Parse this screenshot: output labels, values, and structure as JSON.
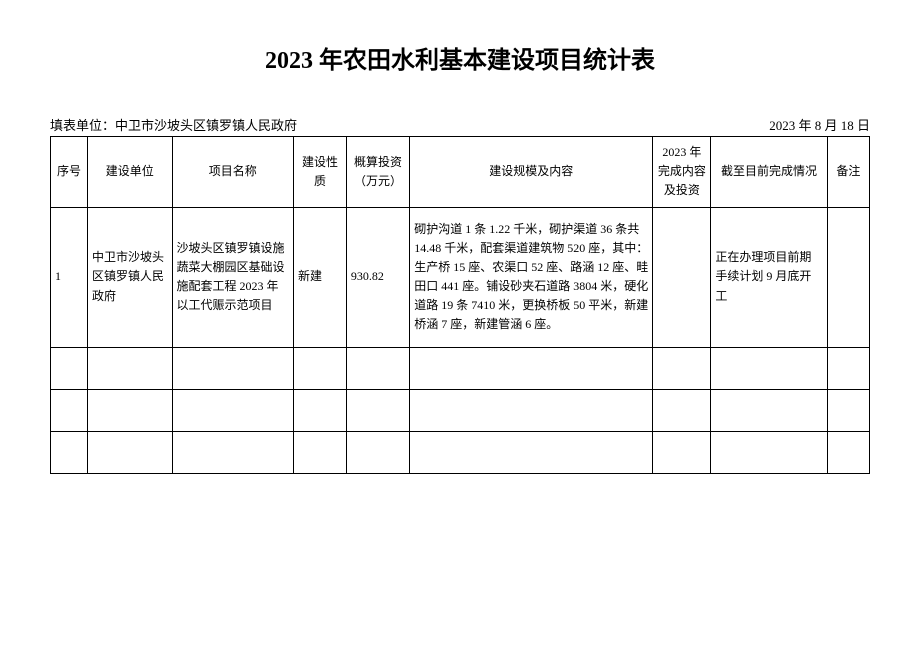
{
  "title": "2023 年农田水利基本建设项目统计表",
  "meta": {
    "fillUnit": "填表单位：中卫市沙坡头区镇罗镇人民政府",
    "date": "2023 年 8 月 18 日"
  },
  "headers": {
    "seq": "序号",
    "unit": "建设单位",
    "name": "项目名称",
    "nature": "建设性质",
    "invest": "概算投资（万元）",
    "content": "建设规模及内容",
    "year2023": "2023 年完成内容及投资",
    "status": "截至目前完成情况",
    "remark": "备注"
  },
  "rows": [
    {
      "seq": "1",
      "unit": "中卫市沙坡头区镇罗镇人民政府",
      "name": "沙坡头区镇罗镇设施蔬菜大棚园区基础设施配套工程 2023 年以工代赈示范项目",
      "nature": "新建",
      "invest": "930.82",
      "content": "砌护沟道 1 条 1.22 千米，砌护渠道 36 条共 14.48 千米，配套渠道建筑物 520 座，其中：生产桥 15 座、农渠口 52 座、路涵 12 座、畦田口 441 座。铺设砂夹石道路 3804 米，硬化道路 19 条 7410 米，更换桥板 50 平米，新建桥涵 7 座，新建管涵 6 座。",
      "year2023": "",
      "status": "正在办理项目前期手续计划 9 月底开工",
      "remark": ""
    }
  ],
  "emptyRowCount": 3,
  "styling": {
    "backgroundColor": "#ffffff",
    "borderColor": "#000000",
    "titleFontSize": 24,
    "bodyFontSize": 12,
    "metaFontSize": 13
  }
}
